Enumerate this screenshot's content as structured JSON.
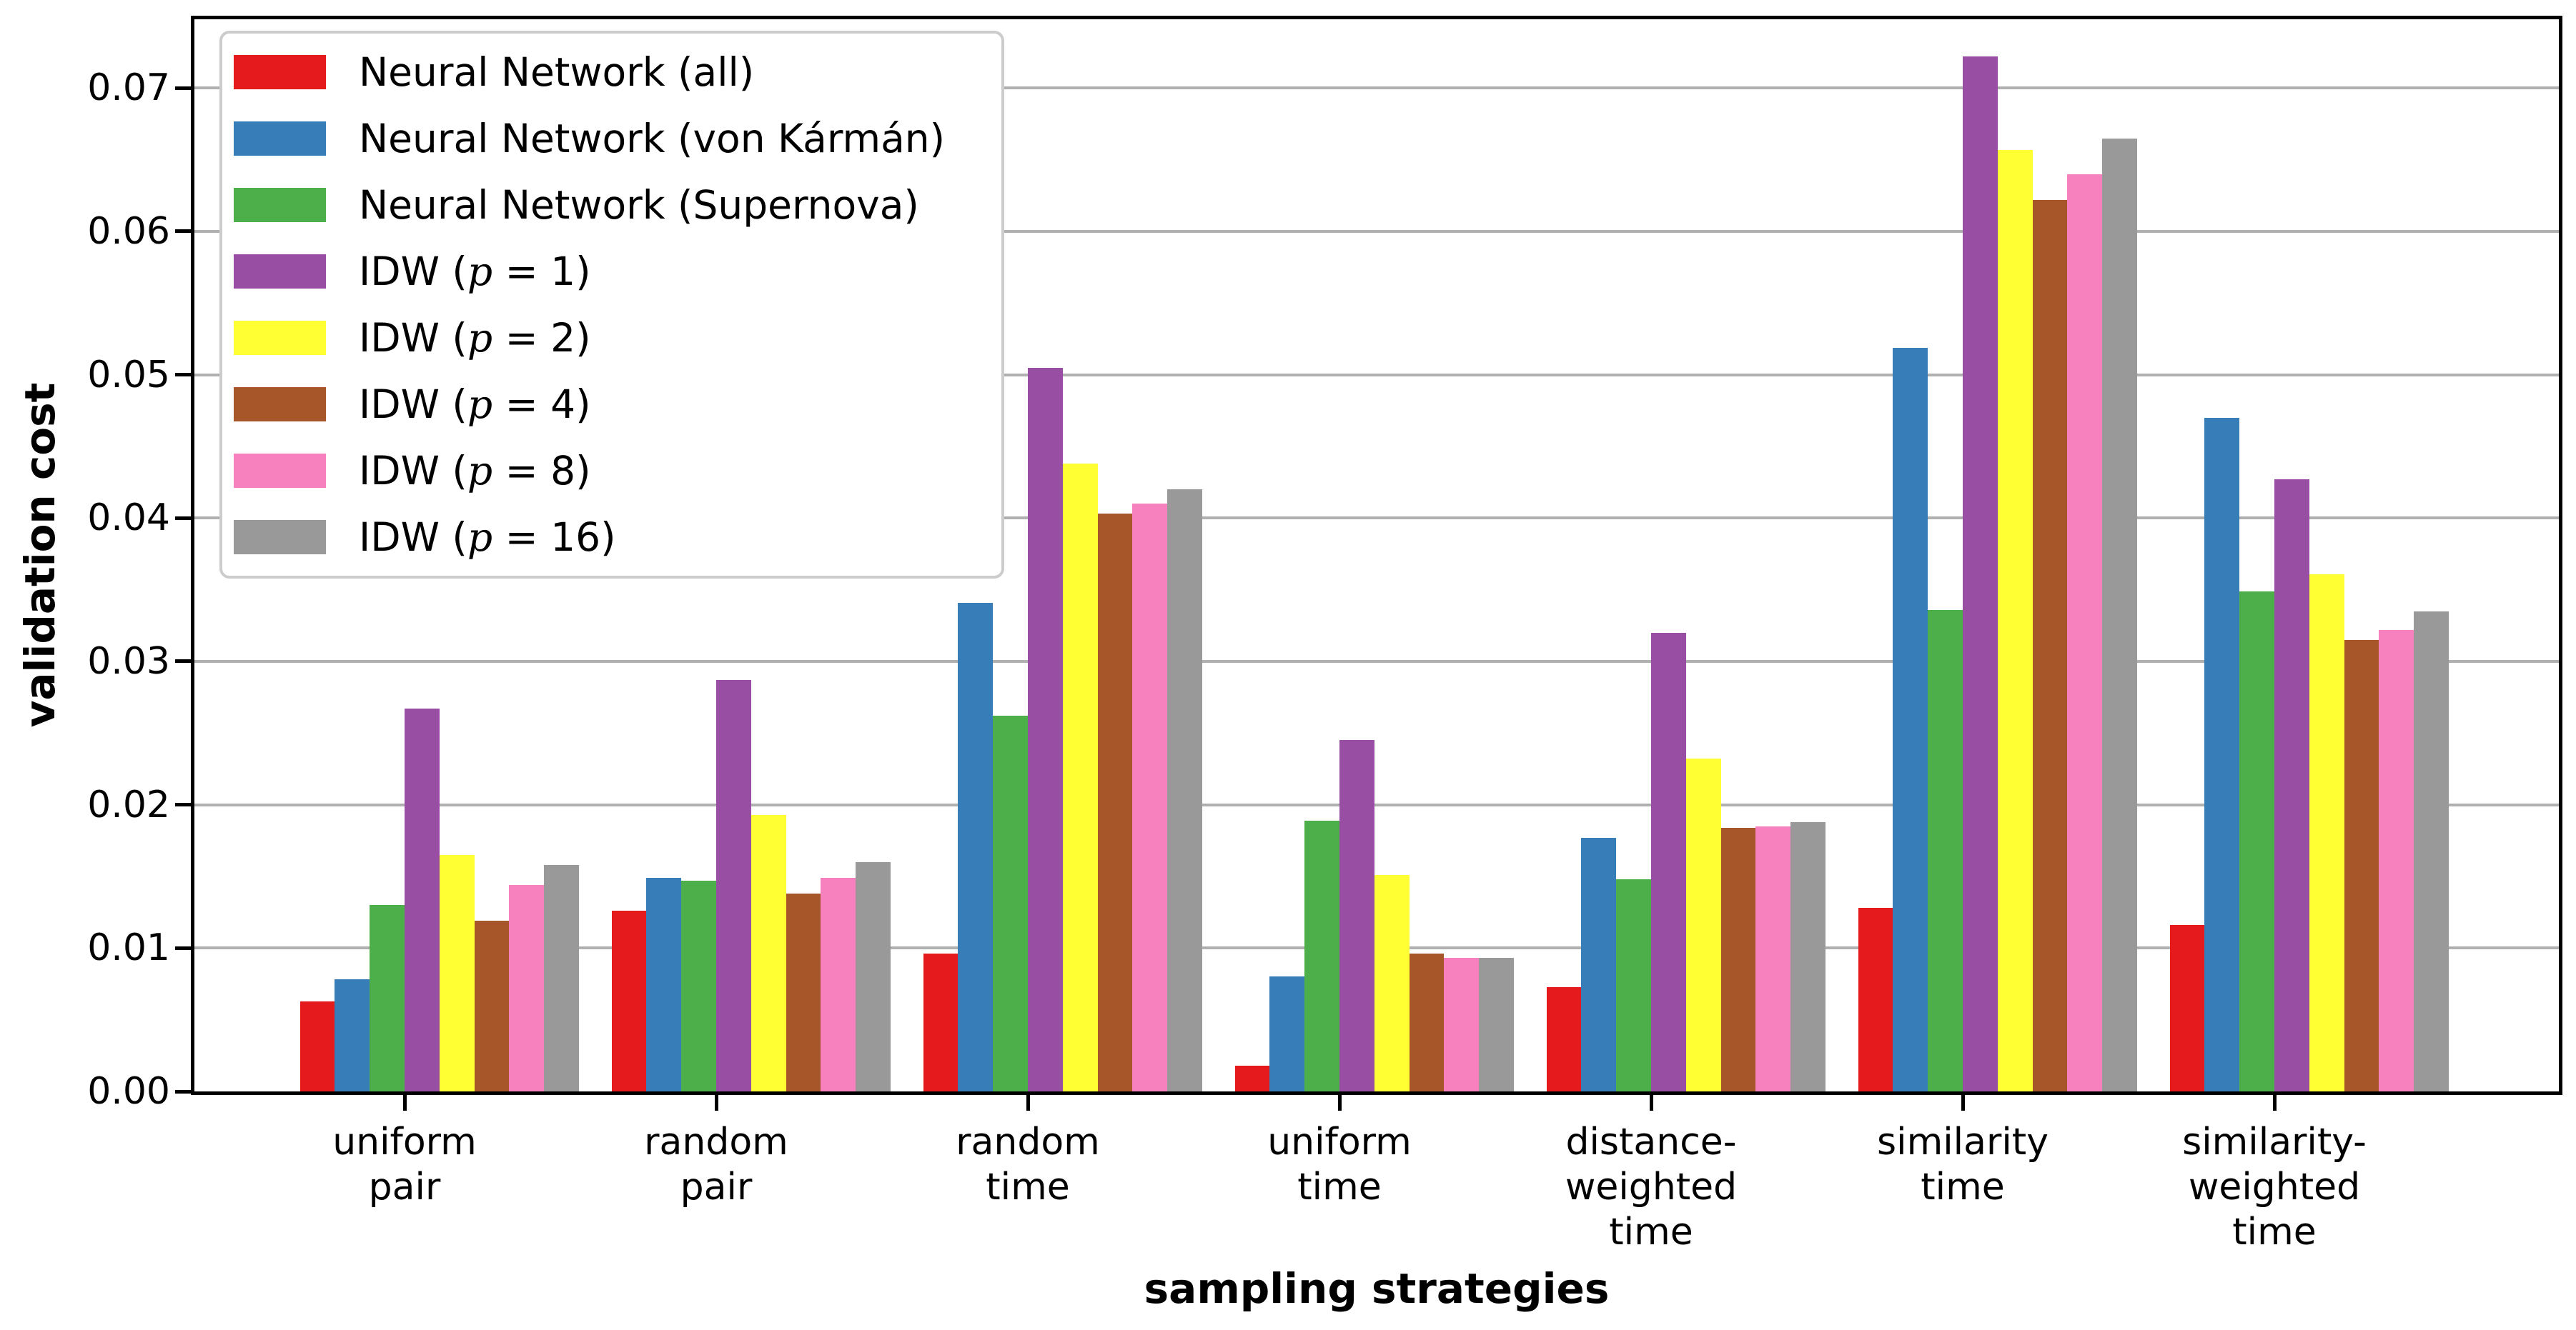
{
  "chart_data": {
    "type": "bar",
    "title": "",
    "xlabel": "sampling strategies",
    "ylabel": "validation cost",
    "categories": [
      "uniform\npair",
      "random\npair",
      "random\ntime",
      "uniform\ntime",
      "distance-\nweighted\ntime",
      "similarity\ntime",
      "similarity-\nweighted\ntime"
    ],
    "series": [
      {
        "name": "Neural Network (all)",
        "color": "#e41a1c",
        "values": [
          0.0063,
          0.0126,
          0.0096,
          0.0018,
          0.0073,
          0.0128,
          0.0116
        ]
      },
      {
        "name": "Neural Network (von Kármán)",
        "color": "#377eb8",
        "values": [
          0.0078,
          0.0149,
          0.0341,
          0.008,
          0.0177,
          0.0519,
          0.047
        ]
      },
      {
        "name": "Neural Network (Supernova)",
        "color": "#4daf4a",
        "values": [
          0.013,
          0.0147,
          0.0262,
          0.0189,
          0.0148,
          0.0336,
          0.0349
        ]
      },
      {
        "name": "IDW (p = 1)",
        "color": "#984ea3",
        "values": [
          0.0267,
          0.0287,
          0.0505,
          0.0245,
          0.032,
          0.0722,
          0.0427
        ]
      },
      {
        "name": "IDW (p = 2)",
        "color": "#ffff33",
        "values": [
          0.0165,
          0.0193,
          0.0438,
          0.0151,
          0.0232,
          0.0657,
          0.0361
        ]
      },
      {
        "name": "IDW (p = 4)",
        "color": "#a65628",
        "values": [
          0.0119,
          0.0138,
          0.0403,
          0.0096,
          0.0184,
          0.0622,
          0.0315
        ]
      },
      {
        "name": "IDW (p = 8)",
        "color": "#f781bf",
        "values": [
          0.0144,
          0.0149,
          0.041,
          0.0093,
          0.0185,
          0.064,
          0.0322
        ]
      },
      {
        "name": "IDW (p = 16)",
        "color": "#999999",
        "values": [
          0.0158,
          0.016,
          0.042,
          0.0093,
          0.0188,
          0.0665,
          0.0335
        ]
      }
    ],
    "y_ticks": [
      "0.00",
      "0.01",
      "0.02",
      "0.03",
      "0.04",
      "0.05",
      "0.06",
      "0.07"
    ],
    "ylim": [
      0,
      0.0748
    ],
    "grid": "horizontal",
    "grid_color": "#b0b0b0",
    "legend_position": "upper left"
  }
}
